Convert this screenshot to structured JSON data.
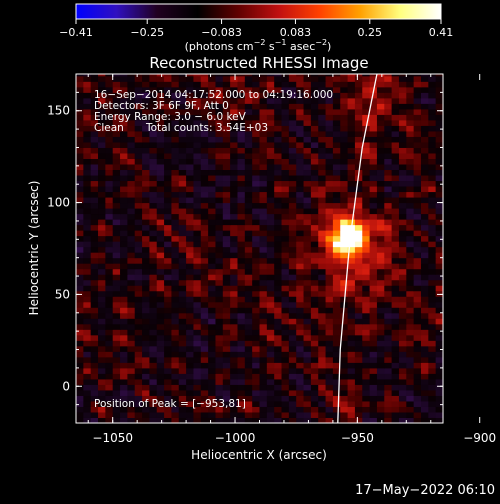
{
  "chart_data": {
    "type": "heatmap",
    "title": "Reconstructed RHESSI Image",
    "xlabel": "Heliocentric X (arcsec)",
    "ylabel": "Heliocentric Y (arcsec)",
    "xlim": [
      -1065,
      -915
    ],
    "ylim": [
      -20,
      170
    ],
    "x_ticks": [
      {
        "value": -1050,
        "label": "−1050"
      },
      {
        "value": -1000,
        "label": "−1000"
      },
      {
        "value": -950,
        "label": "−950"
      },
      {
        "value": -900,
        "label": "−900"
      }
    ],
    "y_ticks": [
      {
        "value": 0,
        "label": "0"
      },
      {
        "value": 50,
        "label": "50"
      },
      {
        "value": 100,
        "label": "100"
      },
      {
        "value": 150,
        "label": "150"
      }
    ],
    "colorbar": {
      "range": [
        -0.41,
        0.41
      ],
      "ticks": [
        {
          "value": -0.41,
          "label": "−0.41"
        },
        {
          "value": -0.25,
          "label": "−0.25"
        },
        {
          "value": -0.083,
          "label": "−0.083"
        },
        {
          "value": 0.083,
          "label": "0.083"
        },
        {
          "value": 0.25,
          "label": "0.25"
        },
        {
          "value": 0.41,
          "label": "0.41"
        }
      ],
      "units_prefix": "(photons cm",
      "units_exp1": "−2",
      "units_mid": " s",
      "units_exp2": "−1",
      "units_mid2": " asec",
      "units_exp3": "−2",
      "units_suffix": ")",
      "colors": [
        "#0000ff",
        "#3010c0",
        "#200020",
        "#000000",
        "#600000",
        "#c01010",
        "#ff4000",
        "#ffa000",
        "#ffff80",
        "#ffffff"
      ]
    },
    "annotations": {
      "line1": "16−Sep−2014 04:17:52.000 to 04:19:16.000",
      "line2": "Detectors: 3F 6F 9F, Att 0",
      "line3": "Energy Range: 3.0 − 6.0 keV",
      "line4a": "Clean",
      "line4b": "Total counts: 3.54E+03",
      "peak": "Position of Peak = [−953,81]"
    },
    "peak": {
      "x": -953,
      "y": 81,
      "value": 0.41
    },
    "limb_curve": [
      [
        -942,
        170
      ],
      [
        -948,
        130
      ],
      [
        -951,
        100
      ],
      [
        -953,
        80
      ],
      [
        -955,
        50
      ],
      [
        -957,
        20
      ],
      [
        -958,
        -20
      ]
    ]
  },
  "footer": {
    "date": "17−May−2022 06:10"
  }
}
